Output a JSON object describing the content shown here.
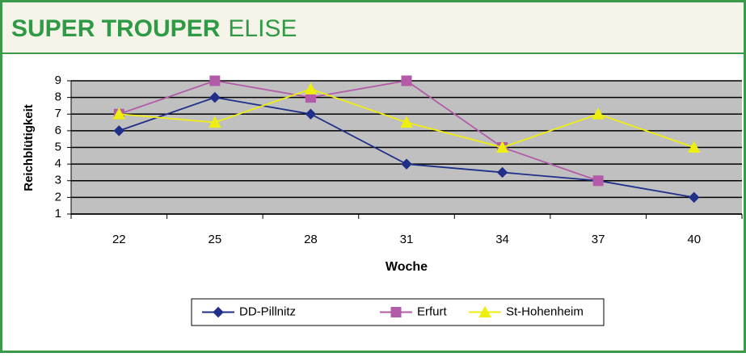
{
  "header": {
    "title_bold": "SUPER TROUPER",
    "title_light": "ELISE"
  },
  "chart_data": {
    "type": "line",
    "xlabel": "Woche",
    "ylabel": "Reichblütigkeit",
    "categories": [
      "22",
      "25",
      "28",
      "31",
      "34",
      "37",
      "40"
    ],
    "series": [
      {
        "name": "DD-Pillnitz",
        "color": "#1f2f8a",
        "marker": "diamond",
        "values": [
          6,
          8,
          7,
          4,
          3.5,
          3,
          2
        ]
      },
      {
        "name": "Erfurt",
        "color": "#b35aa8",
        "marker": "square",
        "values": [
          7,
          9,
          8,
          9,
          5,
          3,
          null
        ]
      },
      {
        "name": "St-Hohenheim",
        "color": "#eeee10",
        "marker": "triangle",
        "values": [
          7,
          6.5,
          8.5,
          6.5,
          5,
          7,
          5
        ]
      }
    ],
    "ylim": [
      1,
      9
    ],
    "yticks": [
      1,
      2,
      3,
      4,
      5,
      6,
      7,
      8,
      9
    ],
    "grid": true,
    "legend": "bottom"
  }
}
